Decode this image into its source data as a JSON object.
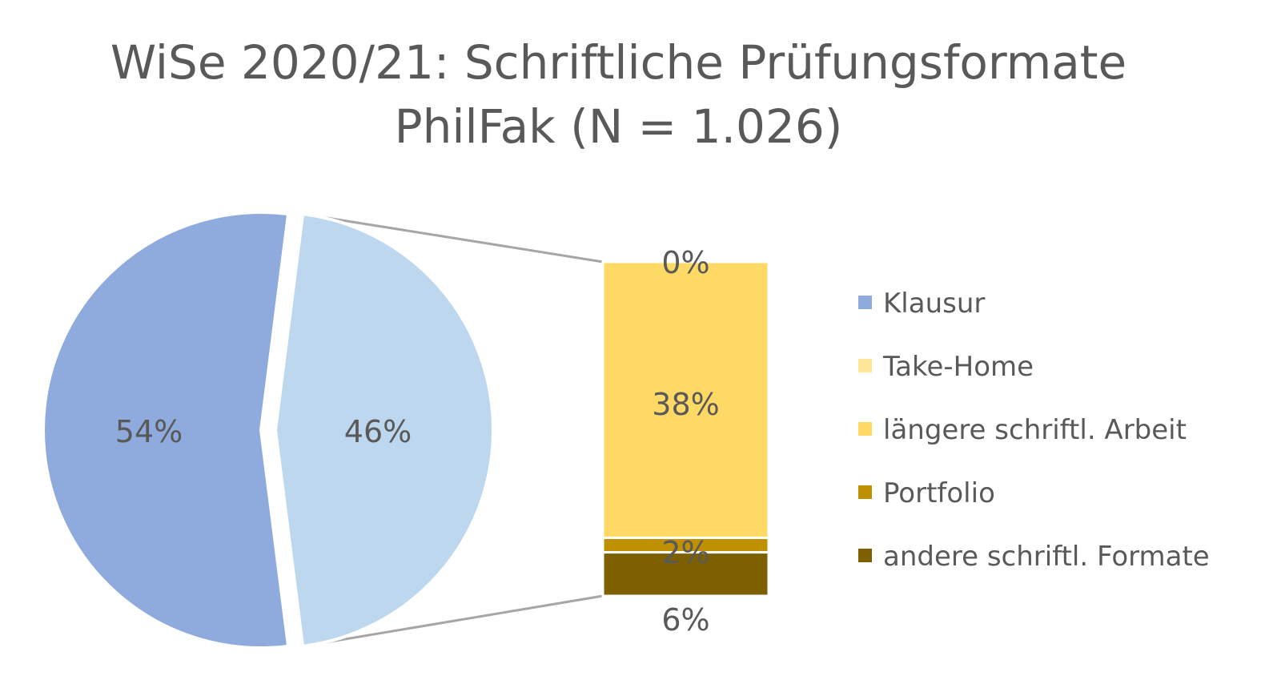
{
  "chart_data": {
    "type": "bar-of-pie",
    "title_line1": "WiSe 2020/21: Schriftliche Prüfungsformate",
    "title_line2": "PhilFak (N = 1.026)",
    "pie": {
      "slices": [
        {
          "name": "Klausur",
          "value": 54,
          "label": "54%",
          "color": "#8faadc"
        },
        {
          "name": "Take-Home, längere schriftl. Arbeit, Portfolio, andere schriftl. Formate",
          "value": 46,
          "label": "46%",
          "color": "#bdd7ee"
        }
      ]
    },
    "bar": {
      "segments": [
        {
          "name": "Take-Home",
          "value": 0,
          "label": "0%",
          "color": "#ffe699"
        },
        {
          "name": "längere schriftl. Arbeit",
          "value": 38,
          "label": "38%",
          "color": "#ffd966"
        },
        {
          "name": "Portfolio",
          "value": 2,
          "label": "2%",
          "color": "#bf9000"
        },
        {
          "name": "andere schriftl. Formate",
          "value": 6,
          "label": "6%",
          "color": "#7f6000"
        }
      ]
    },
    "legend": [
      {
        "name": "Klausur",
        "color": "#8faadc"
      },
      {
        "name": "Take-Home",
        "color": "#ffe699"
      },
      {
        "name": "längere schriftl. Arbeit",
        "color": "#ffd966"
      },
      {
        "name": "Portfolio",
        "color": "#bf9000"
      },
      {
        "name": "andere schriftl. Formate",
        "color": "#7f6000"
      }
    ],
    "legend_position": "right"
  }
}
